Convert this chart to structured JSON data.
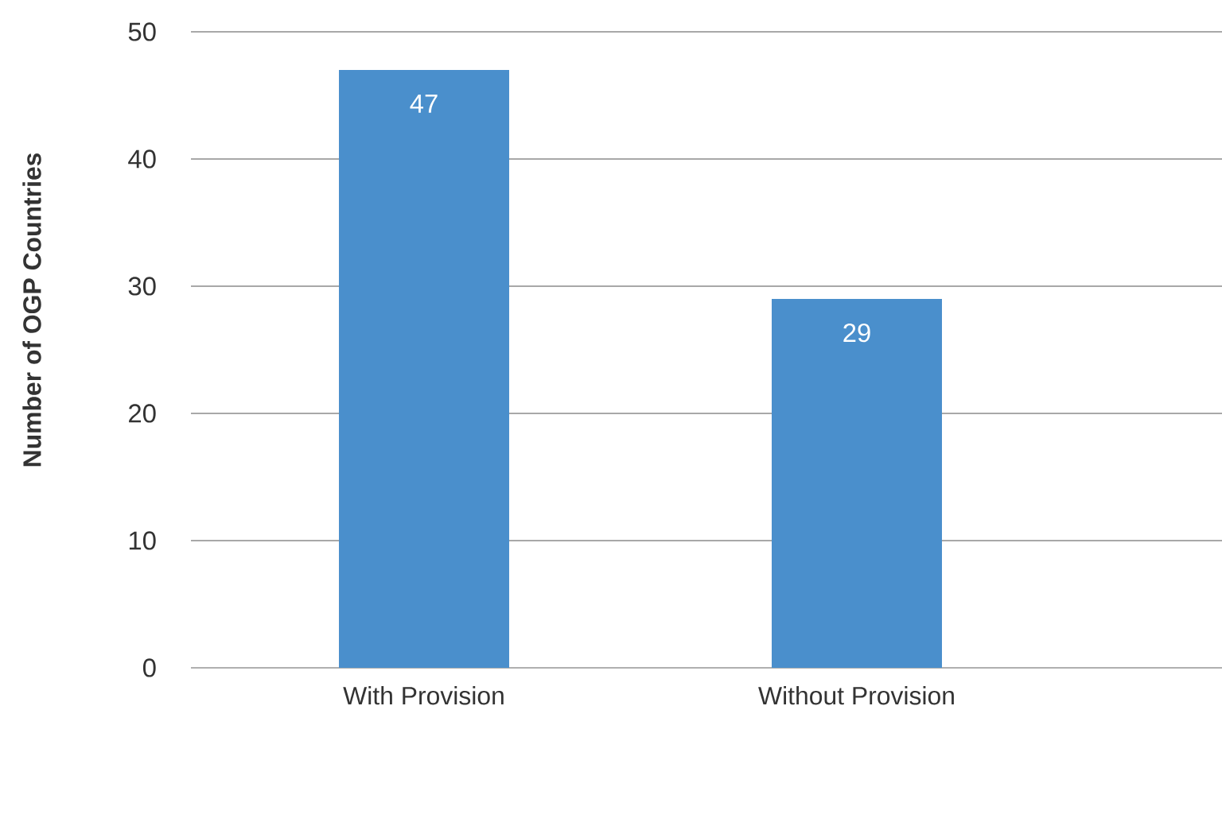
{
  "chart_data": {
    "type": "bar",
    "ylabel": "Number of OGP Countries",
    "categories": [
      "With Provision",
      "Without Provision"
    ],
    "values": [
      47,
      29
    ],
    "color": "#4a8fcc",
    "ylim": [
      0,
      50
    ],
    "yticks": [
      0,
      10,
      20,
      30,
      40,
      50
    ],
    "grid": "y",
    "data_labels": true
  }
}
